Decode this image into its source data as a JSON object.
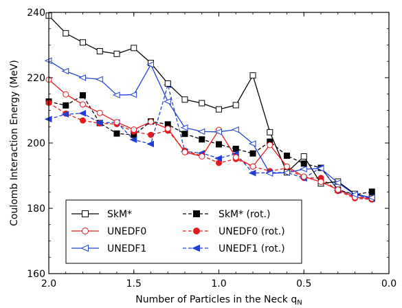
{
  "chart_data": {
    "type": "line",
    "xlabel": "Number of Particles in the Neck q",
    "xlabel_subscript": "N",
    "ylabel": "Coulomb Interaction Energy (MeV)",
    "xlim": [
      2.0,
      0.0
    ],
    "ylim": [
      160,
      240
    ],
    "x_reversed": true,
    "x_ticks": [
      2.0,
      1.5,
      1.0,
      0.5,
      0.0
    ],
    "x_tick_labels": [
      "2.0",
      "1.5",
      "1.0",
      "0.5",
      "0.0"
    ],
    "y_ticks": [
      160,
      180,
      200,
      220,
      240
    ],
    "y_tick_labels": [
      "160",
      "180",
      "200",
      "220",
      "240"
    ],
    "grid": false,
    "legend_position": "bottom-left",
    "series": [
      {
        "name": "SkM*",
        "color": "#000000",
        "line": "solid",
        "marker": "square",
        "filled": false,
        "points": [
          [
            2.0,
            239.0
          ],
          [
            1.9,
            233.6
          ],
          [
            1.8,
            230.8
          ],
          [
            1.7,
            228.1
          ],
          [
            1.6,
            227.3
          ],
          [
            1.5,
            229.1
          ],
          [
            1.4,
            224.5
          ],
          [
            1.3,
            218.2
          ],
          [
            1.2,
            213.3
          ],
          [
            1.1,
            212.2
          ],
          [
            1.0,
            210.3
          ],
          [
            0.9,
            211.6
          ],
          [
            0.8,
            220.7
          ],
          [
            0.7,
            203.3
          ],
          [
            0.6,
            191.0
          ],
          [
            0.5,
            195.9
          ],
          [
            0.4,
            187.6
          ],
          [
            0.3,
            188.2
          ],
          [
            0.2,
            184.4
          ],
          [
            0.1,
            183.2
          ]
        ]
      },
      {
        "name": "UNEDF0",
        "color": "#e41a1c",
        "line": "solid",
        "marker": "circle",
        "filled": false,
        "points": [
          [
            2.0,
            219.4
          ],
          [
            1.9,
            214.9
          ],
          [
            1.8,
            211.8
          ],
          [
            1.7,
            209.2
          ],
          [
            1.6,
            206.4
          ],
          [
            1.5,
            204.1
          ],
          [
            1.4,
            206.5
          ],
          [
            1.3,
            204.4
          ],
          [
            1.2,
            197.2
          ],
          [
            1.1,
            195.9
          ],
          [
            1.0,
            204.0
          ],
          [
            0.9,
            195.6
          ],
          [
            0.8,
            192.8
          ],
          [
            0.7,
            199.4
          ],
          [
            0.6,
            192.8
          ],
          [
            0.5,
            189.7
          ],
          [
            0.4,
            188.1
          ],
          [
            0.3,
            185.7
          ],
          [
            0.2,
            183.4
          ],
          [
            0.1,
            183.0
          ]
        ]
      },
      {
        "name": "UNEDF1",
        "color": "#1f3fd6",
        "line": "solid",
        "marker": "triangle-left",
        "filled": false,
        "points": [
          [
            2.0,
            225.2
          ],
          [
            1.9,
            222.0
          ],
          [
            1.8,
            220.0
          ],
          [
            1.7,
            219.5
          ],
          [
            1.6,
            214.7
          ],
          [
            1.5,
            214.8
          ],
          [
            1.4,
            224.0
          ],
          [
            1.3,
            212.7
          ],
          [
            1.2,
            204.7
          ],
          [
            1.1,
            203.5
          ],
          [
            1.0,
            203.4
          ],
          [
            0.9,
            204.1
          ],
          [
            0.8,
            199.8
          ],
          [
            0.7,
            190.7
          ],
          [
            0.6,
            190.9
          ],
          [
            0.5,
            192.0
          ],
          [
            0.4,
            192.2
          ],
          [
            0.3,
            187.8
          ],
          [
            0.2,
            184.2
          ],
          [
            0.1,
            183.3
          ]
        ]
      },
      {
        "name": "SkM* (rot.)",
        "color": "#000000",
        "line": "dashed",
        "marker": "square",
        "filled": true,
        "points": [
          [
            2.0,
            212.7
          ],
          [
            1.9,
            211.5
          ],
          [
            1.8,
            214.6
          ],
          [
            1.7,
            206.1
          ],
          [
            1.6,
            202.9
          ],
          [
            1.5,
            202.5
          ],
          [
            1.4,
            206.6
          ],
          [
            1.3,
            205.7
          ],
          [
            1.2,
            202.8
          ],
          [
            1.1,
            201.1
          ],
          [
            1.0,
            199.6
          ],
          [
            0.9,
            198.2
          ],
          [
            0.8,
            196.8
          ],
          [
            0.7,
            200.4
          ],
          [
            0.6,
            196.1
          ],
          [
            0.5,
            193.7
          ],
          [
            0.4,
            192.4
          ],
          [
            0.3,
            185.7
          ],
          [
            0.2,
            184.2
          ],
          [
            0.1,
            185.1
          ]
        ]
      },
      {
        "name": "UNEDF0 (rot.)",
        "color": "#e41a1c",
        "line": "dashed",
        "marker": "circle",
        "filled": true,
        "points": [
          [
            2.0,
            212.3
          ],
          [
            1.9,
            209.0
          ],
          [
            1.8,
            206.9
          ],
          [
            1.7,
            206.0
          ],
          [
            1.6,
            205.8
          ],
          [
            1.5,
            203.5
          ],
          [
            1.4,
            202.5
          ],
          [
            1.3,
            203.8
          ],
          [
            1.2,
            197.6
          ],
          [
            1.1,
            196.1
          ],
          [
            1.0,
            193.9
          ],
          [
            0.9,
            195.1
          ],
          [
            0.8,
            192.8
          ],
          [
            0.7,
            191.4
          ],
          [
            0.6,
            192.3
          ],
          [
            0.5,
            189.3
          ],
          [
            0.4,
            189.3
          ],
          [
            0.3,
            185.3
          ],
          [
            0.2,
            183.1
          ],
          [
            0.1,
            182.7
          ]
        ]
      },
      {
        "name": "UNEDF1 (rot.)",
        "color": "#1f3fd6",
        "line": "dashed",
        "marker": "triangle-left",
        "filled": true,
        "points": [
          [
            2.0,
            207.3
          ],
          [
            1.9,
            208.8
          ],
          [
            1.8,
            209.1
          ],
          [
            1.7,
            206.2
          ],
          [
            1.6,
            206.3
          ],
          [
            1.5,
            201.0
          ],
          [
            1.4,
            199.7
          ],
          [
            1.3,
            217.8
          ],
          [
            1.2,
            197.4
          ],
          [
            1.1,
            196.9
          ],
          [
            1.0,
            195.3
          ],
          [
            0.9,
            196.7
          ],
          [
            0.8,
            190.8
          ],
          [
            0.7,
            190.9
          ],
          [
            0.6,
            191.0
          ],
          [
            0.5,
            189.2
          ],
          [
            0.4,
            192.5
          ],
          [
            0.3,
            185.5
          ],
          [
            0.2,
            184.1
          ],
          [
            0.1,
            182.9
          ]
        ]
      }
    ],
    "legend_layout": [
      [
        "SkM*",
        "SkM* (rot.)"
      ],
      [
        "UNEDF0",
        "UNEDF0 (rot.)"
      ],
      [
        "UNEDF1",
        "UNEDF1 (rot.)"
      ]
    ]
  }
}
